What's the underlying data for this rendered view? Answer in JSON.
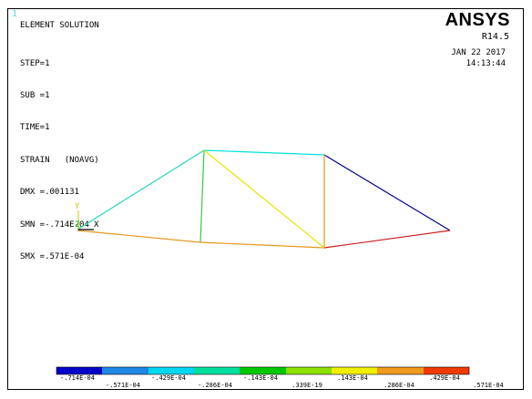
{
  "window": {
    "number": "1"
  },
  "header": {
    "solution_type": "ELEMENT SOLUTION",
    "lines": [
      "STEP=1",
      "SUB =1",
      "TIME=1",
      "STRAIN   (NOAVG)",
      "DMX =.001131",
      "SMN =-.714E-04",
      "SMX =.571E-04"
    ]
  },
  "branding": {
    "product": "ANSYS",
    "release": "R14.5",
    "date": "JAN 22 2017",
    "time": "14:13:44"
  },
  "triad": {
    "y_label": "Y",
    "z_label": "Z",
    "x_label": "X",
    "y_color": "#c8c800",
    "z_color": "#00b400",
    "x_color": "#000000"
  },
  "model": {
    "elements": [
      {
        "id": "e1",
        "color": "#1fd9b8"
      },
      {
        "id": "e2",
        "color": "#00e0e0"
      },
      {
        "id": "e3",
        "color": "#00008b"
      },
      {
        "id": "e4",
        "color": "#e6961e"
      },
      {
        "id": "e5",
        "color": "#e6961e"
      },
      {
        "id": "e6",
        "color": "#c81e1e"
      },
      {
        "id": "e7",
        "color": "#3cc83c"
      },
      {
        "id": "e8",
        "color": "#e6e600"
      },
      {
        "id": "e9",
        "color": "#e6961e"
      }
    ]
  },
  "legend": {
    "colors": [
      "#0000c8",
      "#1e88e5",
      "#00d8f0",
      "#00e0a0",
      "#00c800",
      "#8ce100",
      "#f0f000",
      "#f09a1e",
      "#f03a00"
    ],
    "top_labels": [
      "-.714E-04",
      "-.429E-04",
      "-.143E-04",
      ".143E-04",
      ".429E-04"
    ],
    "bottom_labels": [
      "-.571E-04",
      "-.286E-04",
      ".339E-19",
      ".286E-04",
      ".571E-04"
    ]
  }
}
